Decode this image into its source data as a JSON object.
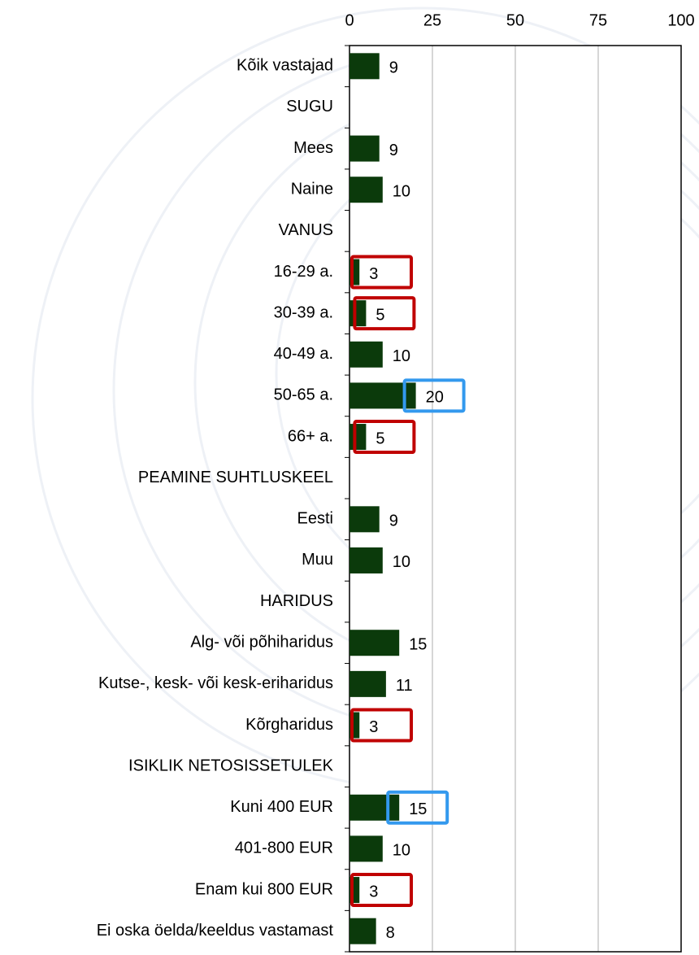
{
  "chart_data": {
    "type": "bar",
    "orientation": "horizontal",
    "categories": [
      "Kõik vastajad",
      "SUGU",
      "Mees",
      "Naine",
      "VANUS",
      "16-29 a.",
      "30-39 a.",
      "40-49 a.",
      "50-65 a.",
      "66+ a.",
      "PEAMINE SUHTLUSKEEL",
      "Eesti",
      "Muu",
      "HARIDUS",
      "Alg- või põhiharidus",
      "Kutse-, kesk- või kesk-eriharidus",
      "Kõrgharidus",
      "ISIKLIK NETOSISSETULEK",
      "Kuni 400 EUR",
      "401-800 EUR",
      "Enam kui 800 EUR",
      "Ei oska öelda/keeldus vastamast"
    ],
    "values": [
      9,
      null,
      9,
      10,
      null,
      3,
      5,
      10,
      20,
      5,
      null,
      9,
      10,
      null,
      15,
      11,
      3,
      null,
      15,
      10,
      3,
      8
    ],
    "highlight": [
      null,
      null,
      null,
      null,
      null,
      "#c00000",
      "#c00000",
      null,
      "#3399ee",
      "#c00000",
      null,
      null,
      null,
      null,
      null,
      null,
      "#c00000",
      null,
      "#3399ee",
      null,
      "#c00000",
      null
    ],
    "color": "#0b3a0b",
    "xlim": [
      0,
      100
    ],
    "xticks": [
      0,
      25,
      50,
      75,
      100
    ],
    "grid": true
  }
}
